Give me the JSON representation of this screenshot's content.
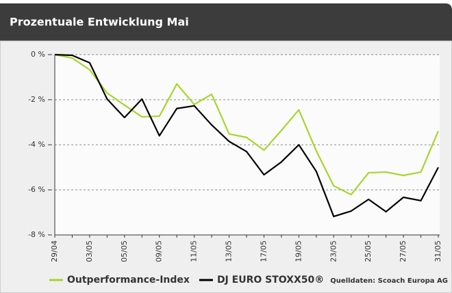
{
  "chart_data": {
    "type": "line",
    "title": "Prozentuale Entwicklung Mai",
    "categories": [
      "29/04",
      null,
      "03/05",
      null,
      "05/05",
      null,
      "09/05",
      null,
      "11/05",
      null,
      "13/05",
      null,
      "17/05",
      null,
      "19/05",
      null,
      "23/05",
      null,
      "25/05",
      null,
      "27/05",
      null,
      "31/05"
    ],
    "series": [
      {
        "name": "Outperformance-Index",
        "color": "#a6d62a",
        "values": [
          0,
          -0.15,
          -0.67,
          -1.7,
          -2.24,
          -2.76,
          -2.73,
          -1.3,
          -2.21,
          -1.76,
          -3.52,
          -3.67,
          -4.24,
          -3.36,
          -2.45,
          -4.27,
          -5.82,
          -6.21,
          -5.24,
          -5.21,
          -5.36,
          -5.21,
          -3.39
        ]
      },
      {
        "name": "DJ EURO STOXX50®",
        "color": "#000000",
        "values": [
          0,
          -0.03,
          -0.36,
          -1.97,
          -2.79,
          -1.97,
          -3.6,
          -2.39,
          -2.27,
          -3.12,
          -3.85,
          -4.3,
          -5.33,
          -4.76,
          -4.0,
          -5.18,
          -7.18,
          -6.94,
          -6.42,
          -6.97,
          -6.33,
          -6.48,
          -5.0
        ]
      }
    ],
    "ylim": [
      -8,
      0
    ],
    "yticks": [
      {
        "value": 0,
        "label": "0 %"
      },
      {
        "value": -2,
        "label": "-2 %"
      },
      {
        "value": -4,
        "label": "-4 %"
      },
      {
        "value": -6,
        "label": "-6 %"
      },
      {
        "value": -8,
        "label": "-8 %"
      }
    ],
    "grid": true,
    "source": "Quelldaten: Scoach Europa AG"
  }
}
